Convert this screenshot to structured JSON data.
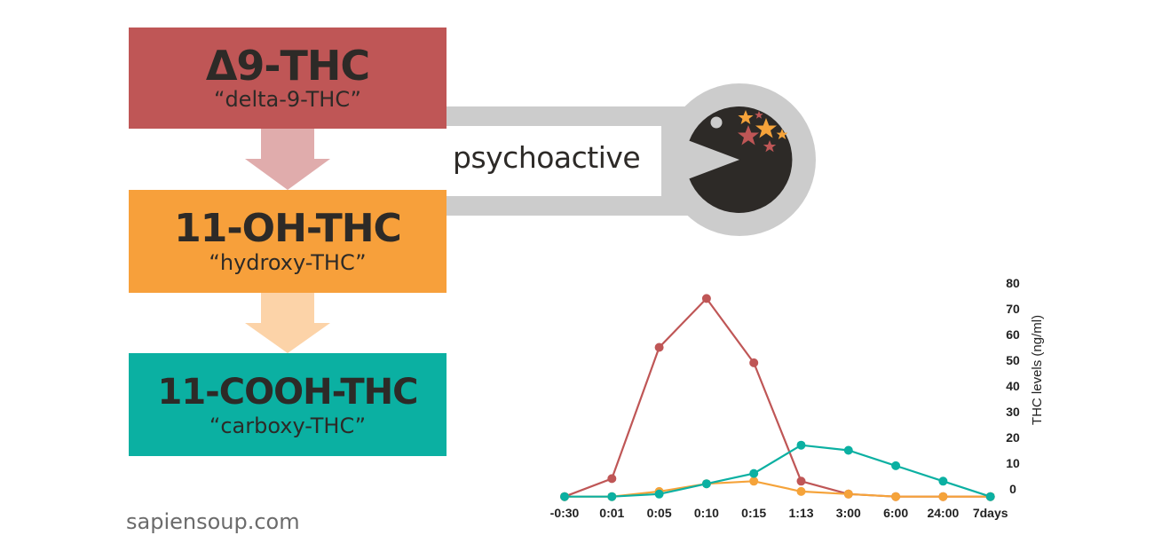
{
  "boxes": [
    {
      "title": "Δ9-THC",
      "subtitle": "“delta-9-THC”",
      "color": "#bf5656"
    },
    {
      "title": "11-OH-THC",
      "subtitle": "“hydroxy-THC”",
      "color": "#f7a03b"
    },
    {
      "title": "11-COOH-THC",
      "subtitle": "“carboxy-THC”",
      "color": "#0bb0a2"
    }
  ],
  "arrows": {
    "arrow1_color": "#e0acac",
    "arrow2_color": "#fcd3a8"
  },
  "connector_color": "#cccccc",
  "psychoactive_label": "psychoactive",
  "pacman": {
    "body_color": "#2d2a27",
    "ring_color": "#cccccc",
    "star_colors": [
      "#f5a33a",
      "#bf5656"
    ]
  },
  "site": "sapiensoup.com",
  "chart_data": {
    "type": "line",
    "categories": [
      "-0:30",
      "0:01",
      "0:05",
      "0:10",
      "0:15",
      "1:13",
      "3:00",
      "6:00",
      "24:00",
      "7days"
    ],
    "y_ticks": [
      "0",
      "10",
      "20",
      "30",
      "40",
      "50",
      "60",
      "70",
      "80"
    ],
    "ylim": [
      0,
      80
    ],
    "ylabel": "THC levels (ng/ml)",
    "xlabel": "",
    "grid": false,
    "series": [
      {
        "color": "#bf5656",
        "values": [
          -3,
          4,
          55,
          74,
          49,
          3,
          -2,
          -3,
          -3,
          -3
        ]
      },
      {
        "color": "#f5a33a",
        "values": [
          -3,
          -3,
          -1,
          2,
          3,
          -1,
          -2,
          -3,
          -3,
          -3
        ]
      },
      {
        "color": "#0bb0a2",
        "values": [
          -3,
          -3,
          -2,
          2,
          6,
          17,
          15,
          9,
          3,
          -3
        ]
      }
    ]
  }
}
